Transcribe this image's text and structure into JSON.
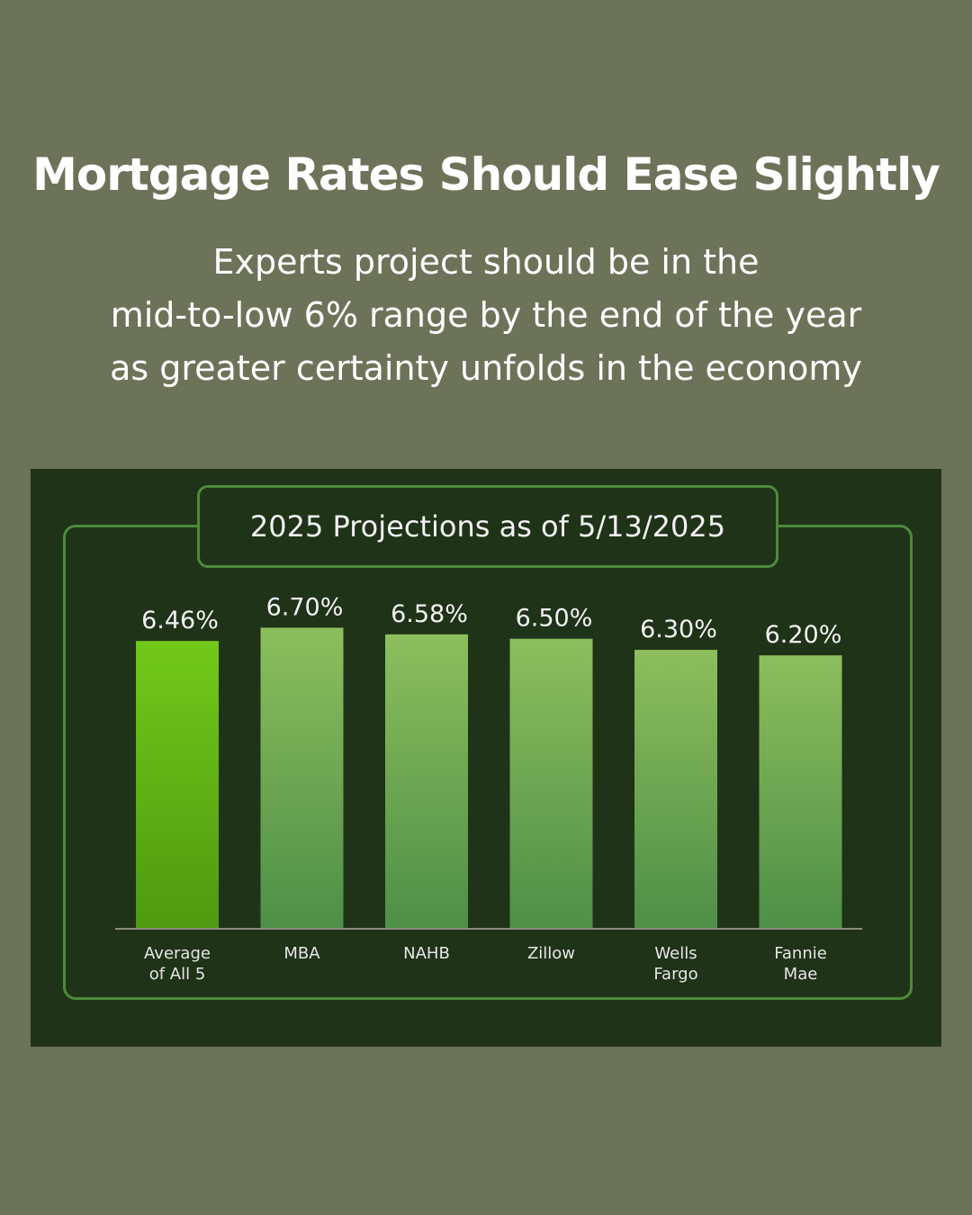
{
  "header": {
    "title": "Mortgage Rates Should Ease Slightly",
    "subtitle_lines": [
      "Experts project should be in the",
      "mid-to-low 6% range by the end of the year",
      "as greater certainty unfolds in the economy"
    ]
  },
  "colors": {
    "background": "#6c7359",
    "panel": "#1f3318",
    "frame": "#4d8a3a",
    "highlight_bar_top": "#72c819",
    "highlight_bar_bottom": "#4f9910",
    "bar_top": "#8cbe5c",
    "bar_bottom": "#4e8f47"
  },
  "chart_data": {
    "type": "bar",
    "title": "2025 Projections as of 5/13/2025",
    "categories": [
      [
        "Average",
        "of All 5"
      ],
      [
        "MBA"
      ],
      [
        "NAHB"
      ],
      [
        "Zillow"
      ],
      [
        "Wells",
        "Fargo"
      ],
      [
        "Fannie",
        "Mae"
      ]
    ],
    "values": [
      6.46,
      6.7,
      6.58,
      6.5,
      6.3,
      6.2
    ],
    "value_labels": [
      "6.46%",
      "6.70%",
      "6.58%",
      "6.50%",
      "6.30%",
      "6.20%"
    ],
    "highlight_index": 0,
    "xlabel": "",
    "ylabel": "",
    "grid": false,
    "legend": "none"
  }
}
